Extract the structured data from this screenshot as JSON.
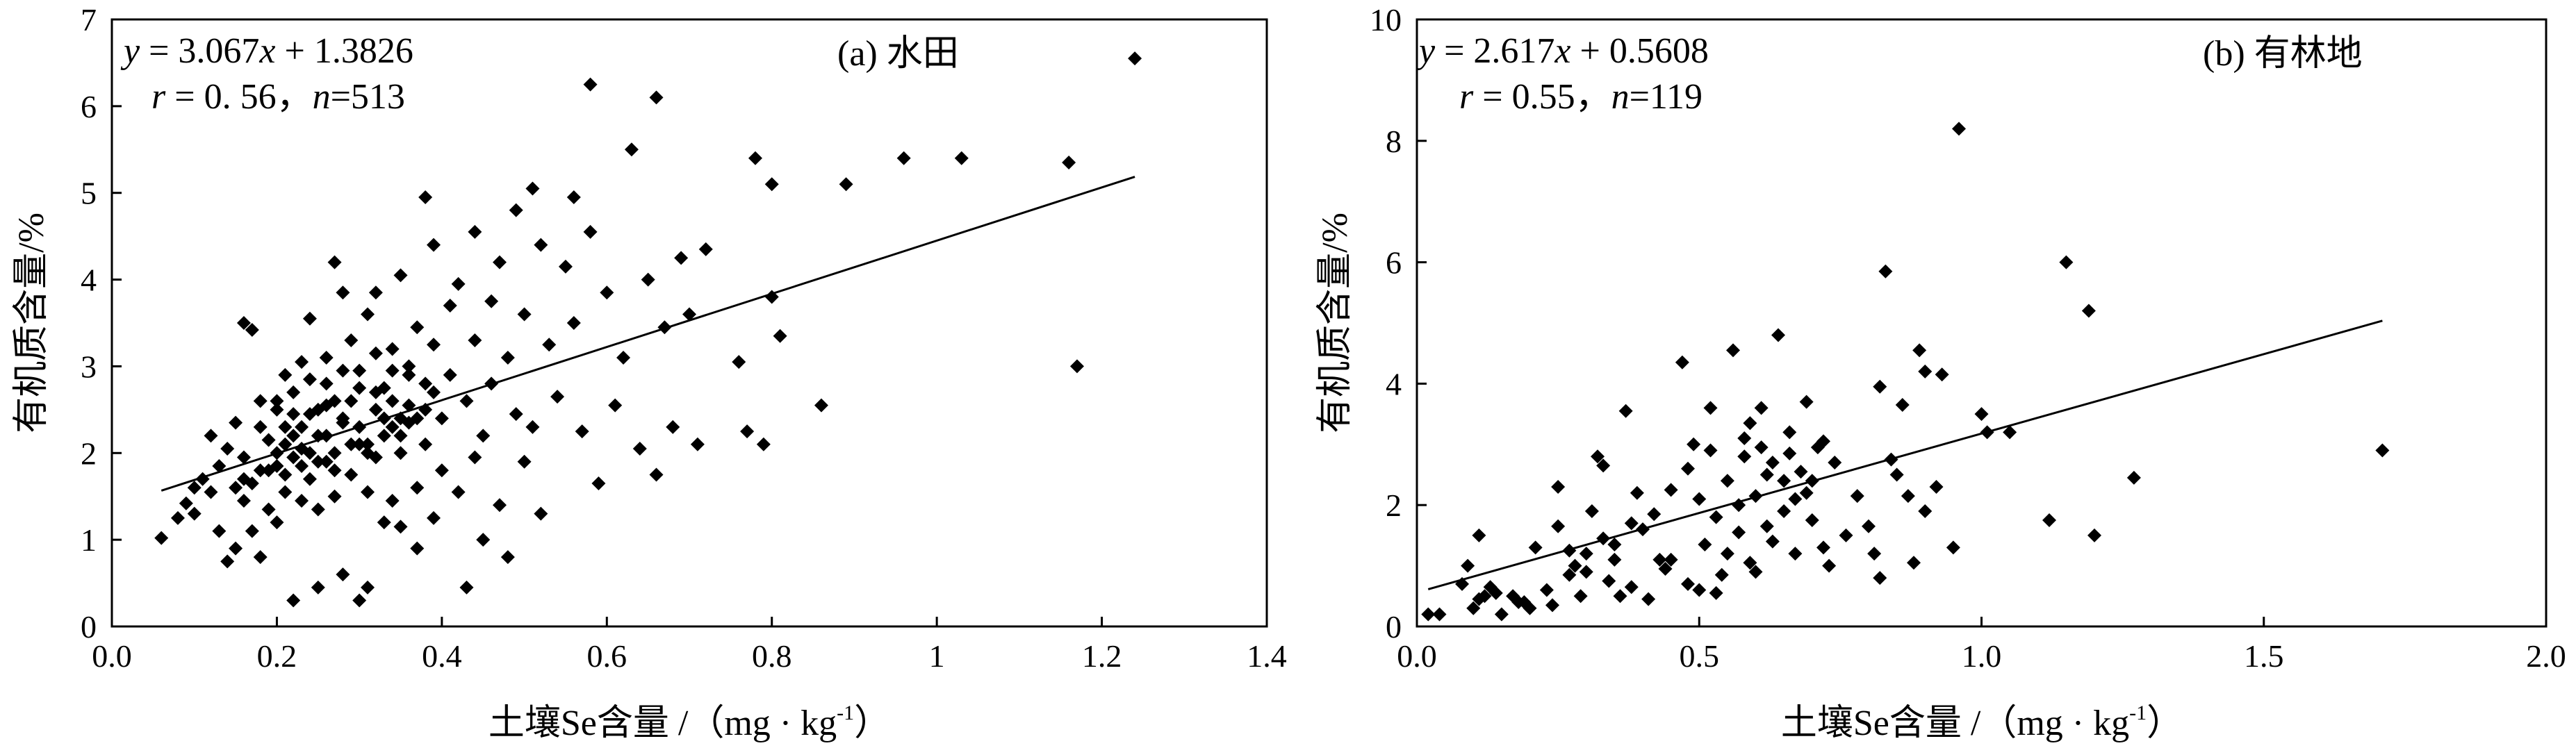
{
  "chart_data": [
    {
      "type": "scatter",
      "panel_label": "(a) 水田",
      "xlabel": "土壤Se含量 /（mg · kg",
      "xlabel_sup": "-1",
      "xlabel_tail": "）",
      "ylabel": "有机质含量/%",
      "xlim": [
        0,
        1.4
      ],
      "ylim": [
        0,
        7
      ],
      "x_ticks": [
        0,
        0.2,
        0.4,
        0.6,
        0.8,
        1,
        1.2,
        1.4
      ],
      "x_tick_labels": [
        "0.0",
        "0.2",
        "0.4",
        "0.6",
        "0.8",
        "1",
        "1.2",
        "1.4"
      ],
      "y_ticks": [
        0,
        1,
        2,
        3,
        4,
        5,
        6,
        7
      ],
      "y_tick_labels": [
        "0",
        "1",
        "2",
        "3",
        "4",
        "5",
        "6",
        "7"
      ],
      "grid": false,
      "legend": "none",
      "equation": {
        "y_var": "y",
        "eq": " = 3.067",
        "x_var": "x",
        "tail": " + 1.3826"
      },
      "stats": {
        "r_var": "r",
        "r_text": " = 0. 56，",
        "n_var": "n",
        "n_text": "=513"
      },
      "fit": {
        "slope": 3.067,
        "intercept": 1.3826,
        "x_range": [
          0.06,
          1.24
        ]
      },
      "points": [
        [
          0.06,
          1.02
        ],
        [
          0.08,
          1.25
        ],
        [
          0.09,
          1.42
        ],
        [
          0.1,
          1.6
        ],
        [
          0.1,
          1.3
        ],
        [
          0.11,
          1.7
        ],
        [
          0.12,
          2.2
        ],
        [
          0.12,
          1.55
        ],
        [
          0.13,
          1.85
        ],
        [
          0.13,
          1.1
        ],
        [
          0.14,
          2.05
        ],
        [
          0.14,
          0.75
        ],
        [
          0.15,
          1.6
        ],
        [
          0.15,
          0.9
        ],
        [
          0.15,
          2.35
        ],
        [
          0.16,
          3.5
        ],
        [
          0.16,
          1.45
        ],
        [
          0.16,
          1.95
        ],
        [
          0.17,
          3.42
        ],
        [
          0.17,
          1.65
        ],
        [
          0.17,
          1.1
        ],
        [
          0.18,
          0.8
        ],
        [
          0.18,
          2.6
        ],
        [
          0.18,
          1.8
        ],
        [
          0.19,
          1.35
        ],
        [
          0.19,
          2.15
        ],
        [
          0.2,
          2.5
        ],
        [
          0.2,
          1.85
        ],
        [
          0.2,
          1.2
        ],
        [
          0.21,
          2.9
        ],
        [
          0.21,
          1.55
        ],
        [
          0.21,
          2.3
        ],
        [
          0.22,
          0.3
        ],
        [
          0.22,
          1.95
        ],
        [
          0.22,
          2.7
        ],
        [
          0.23,
          3.05
        ],
        [
          0.23,
          1.45
        ],
        [
          0.23,
          2.05
        ],
        [
          0.24,
          3.55
        ],
        [
          0.24,
          1.7
        ],
        [
          0.24,
          2.45
        ],
        [
          0.25,
          0.45
        ],
        [
          0.25,
          1.35
        ],
        [
          0.25,
          2.2
        ],
        [
          0.26,
          3.1
        ],
        [
          0.26,
          2.8
        ],
        [
          0.26,
          1.9
        ],
        [
          0.27,
          4.2
        ],
        [
          0.27,
          1.5
        ],
        [
          0.27,
          2.6
        ],
        [
          0.28,
          0.6
        ],
        [
          0.28,
          3.85
        ],
        [
          0.28,
          2.35
        ],
        [
          0.29,
          1.75
        ],
        [
          0.29,
          3.3
        ],
        [
          0.3,
          0.3
        ],
        [
          0.3,
          2.1
        ],
        [
          0.3,
          2.95
        ],
        [
          0.31,
          0.45
        ],
        [
          0.31,
          1.55
        ],
        [
          0.31,
          3.6
        ],
        [
          0.32,
          2.5
        ],
        [
          0.32,
          1.95
        ],
        [
          0.32,
          3.85
        ],
        [
          0.33,
          1.2
        ],
        [
          0.33,
          2.75
        ],
        [
          0.34,
          3.2
        ],
        [
          0.34,
          1.45
        ],
        [
          0.34,
          2.3
        ],
        [
          0.35,
          4.05
        ],
        [
          0.35,
          2.0
        ],
        [
          0.35,
          1.15
        ],
        [
          0.36,
          3.0
        ],
        [
          0.36,
          2.55
        ],
        [
          0.37,
          1.6
        ],
        [
          0.37,
          3.45
        ],
        [
          0.37,
          0.9
        ],
        [
          0.38,
          4.95
        ],
        [
          0.38,
          2.1
        ],
        [
          0.38,
          2.8
        ],
        [
          0.39,
          4.4
        ],
        [
          0.39,
          1.25
        ],
        [
          0.39,
          3.25
        ],
        [
          0.4,
          2.4
        ],
        [
          0.4,
          1.8
        ],
        [
          0.41,
          3.7
        ],
        [
          0.41,
          2.9
        ],
        [
          0.42,
          1.55
        ],
        [
          0.42,
          3.95
        ],
        [
          0.43,
          2.6
        ],
        [
          0.43,
          0.45
        ],
        [
          0.44,
          4.55
        ],
        [
          0.44,
          1.95
        ],
        [
          0.44,
          3.3
        ],
        [
          0.45,
          2.2
        ],
        [
          0.45,
          1.0
        ],
        [
          0.46,
          3.75
        ],
        [
          0.46,
          2.8
        ],
        [
          0.47,
          4.2
        ],
        [
          0.47,
          1.4
        ],
        [
          0.48,
          3.1
        ],
        [
          0.48,
          0.8
        ],
        [
          0.49,
          4.8
        ],
        [
          0.49,
          2.45
        ],
        [
          0.5,
          1.9
        ],
        [
          0.5,
          3.6
        ],
        [
          0.51,
          5.05
        ],
        [
          0.51,
          2.3
        ],
        [
          0.52,
          4.4
        ],
        [
          0.52,
          1.3
        ],
        [
          0.53,
          3.25
        ],
        [
          0.54,
          2.65
        ],
        [
          0.55,
          4.15
        ],
        [
          0.56,
          4.95
        ],
        [
          0.56,
          3.5
        ],
        [
          0.57,
          2.25
        ],
        [
          0.58,
          6.25
        ],
        [
          0.58,
          4.55
        ],
        [
          0.59,
          1.65
        ],
        [
          0.6,
          3.85
        ],
        [
          0.61,
          2.55
        ],
        [
          0.62,
          3.1
        ],
        [
          0.63,
          5.5
        ],
        [
          0.64,
          2.05
        ],
        [
          0.65,
          4.0
        ],
        [
          0.66,
          6.1
        ],
        [
          0.66,
          1.75
        ],
        [
          0.67,
          3.45
        ],
        [
          0.68,
          2.3
        ],
        [
          0.69,
          4.25
        ],
        [
          0.7,
          3.6
        ],
        [
          0.71,
          2.1
        ],
        [
          0.72,
          4.35
        ],
        [
          0.76,
          3.05
        ],
        [
          0.77,
          2.25
        ],
        [
          0.78,
          5.4
        ],
        [
          0.79,
          2.1
        ],
        [
          0.8,
          5.1
        ],
        [
          0.8,
          3.8
        ],
        [
          0.81,
          3.35
        ],
        [
          0.86,
          2.55
        ],
        [
          0.89,
          5.1
        ],
        [
          0.96,
          5.4
        ],
        [
          1.03,
          5.4
        ],
        [
          1.16,
          5.35
        ],
        [
          1.17,
          3.0
        ],
        [
          1.24,
          6.55
        ],
        [
          0.2,
          2.0
        ],
        [
          0.21,
          2.1
        ],
        [
          0.22,
          2.2
        ],
        [
          0.23,
          2.3
        ],
        [
          0.24,
          2.0
        ],
        [
          0.25,
          2.5
        ],
        [
          0.26,
          2.2
        ],
        [
          0.27,
          2.0
        ],
        [
          0.28,
          2.4
        ],
        [
          0.29,
          2.6
        ],
        [
          0.3,
          2.3
        ],
        [
          0.31,
          2.1
        ],
        [
          0.32,
          2.7
        ],
        [
          0.33,
          2.4
        ],
        [
          0.34,
          2.6
        ],
        [
          0.35,
          2.2
        ],
        [
          0.36,
          2.9
        ],
        [
          0.37,
          2.4
        ],
        [
          0.38,
          2.5
        ],
        [
          0.39,
          2.7
        ],
        [
          0.19,
          1.8
        ],
        [
          0.21,
          1.75
        ],
        [
          0.23,
          1.85
        ],
        [
          0.25,
          1.9
        ],
        [
          0.27,
          1.8
        ],
        [
          0.29,
          2.1
        ],
        [
          0.31,
          2.0
        ],
        [
          0.33,
          2.2
        ],
        [
          0.35,
          2.4
        ],
        [
          0.2,
          2.6
        ],
        [
          0.22,
          2.45
        ],
        [
          0.24,
          2.85
        ],
        [
          0.26,
          2.55
        ],
        [
          0.28,
          2.95
        ],
        [
          0.3,
          2.75
        ],
        [
          0.32,
          3.15
        ],
        [
          0.34,
          2.95
        ],
        [
          0.36,
          2.35
        ],
        [
          0.18,
          2.3
        ],
        [
          0.16,
          1.7
        ]
      ]
    },
    {
      "type": "scatter",
      "panel_label": "(b) 有林地",
      "xlabel": "土壤Se含量 /（mg · kg",
      "xlabel_sup": "-1",
      "xlabel_tail": "）",
      "ylabel": "有机质含量/%",
      "xlim": [
        0,
        2.0
      ],
      "ylim": [
        0,
        10
      ],
      "x_ticks": [
        0,
        0.5,
        1.0,
        1.5,
        2.0
      ],
      "x_tick_labels": [
        "0.0",
        "0.5",
        "1.0",
        "1.5",
        "2.0"
      ],
      "y_ticks": [
        0,
        2,
        4,
        6,
        8,
        10
      ],
      "y_tick_labels": [
        "0",
        "2",
        "4",
        "6",
        "8",
        "10"
      ],
      "grid": false,
      "legend": "none",
      "equation": {
        "y_var": "y",
        "eq": " = 2.617",
        "x_var": "x",
        "tail": " + 0.5608"
      },
      "stats": {
        "r_var": "r",
        "r_text": " = 0.55，",
        "n_var": "n",
        "n_text": "=119"
      },
      "fit": {
        "slope": 2.617,
        "intercept": 0.5608,
        "x_range": [
          0.02,
          1.71
        ]
      },
      "points": [
        [
          0.02,
          0.2
        ],
        [
          0.04,
          0.2
        ],
        [
          0.08,
          0.7
        ],
        [
          0.09,
          1.0
        ],
        [
          0.1,
          0.3
        ],
        [
          0.11,
          0.45
        ],
        [
          0.11,
          1.5
        ],
        [
          0.12,
          0.5
        ],
        [
          0.13,
          0.65
        ],
        [
          0.15,
          0.2
        ],
        [
          0.17,
          0.5
        ],
        [
          0.19,
          0.4
        ],
        [
          0.2,
          0.3
        ],
        [
          0.21,
          1.3
        ],
        [
          0.23,
          0.6
        ],
        [
          0.25,
          1.65
        ],
        [
          0.25,
          2.3
        ],
        [
          0.27,
          0.85
        ],
        [
          0.28,
          1.0
        ],
        [
          0.29,
          0.5
        ],
        [
          0.3,
          1.2
        ],
        [
          0.31,
          1.9
        ],
        [
          0.32,
          2.8
        ],
        [
          0.33,
          2.65
        ],
        [
          0.34,
          0.75
        ],
        [
          0.35,
          1.35
        ],
        [
          0.36,
          0.5
        ],
        [
          0.37,
          3.55
        ],
        [
          0.38,
          1.7
        ],
        [
          0.39,
          2.2
        ],
        [
          0.41,
          0.45
        ],
        [
          0.43,
          1.1
        ],
        [
          0.45,
          2.25
        ],
        [
          0.47,
          4.35
        ],
        [
          0.48,
          0.7
        ],
        [
          0.49,
          3.0
        ],
        [
          0.5,
          2.1
        ],
        [
          0.51,
          1.35
        ],
        [
          0.52,
          3.6
        ],
        [
          0.53,
          1.8
        ],
        [
          0.54,
          0.85
        ],
        [
          0.55,
          2.4
        ],
        [
          0.56,
          4.55
        ],
        [
          0.57,
          1.55
        ],
        [
          0.58,
          3.1
        ],
        [
          0.59,
          1.05
        ],
        [
          0.6,
          2.15
        ],
        [
          0.61,
          3.6
        ],
        [
          0.62,
          1.65
        ],
        [
          0.63,
          2.7
        ],
        [
          0.64,
          4.8
        ],
        [
          0.65,
          2.4
        ],
        [
          0.66,
          3.2
        ],
        [
          0.67,
          1.2
        ],
        [
          0.68,
          2.55
        ],
        [
          0.69,
          3.7
        ],
        [
          0.7,
          1.75
        ],
        [
          0.71,
          2.95
        ],
        [
          0.72,
          3.05
        ],
        [
          0.73,
          1.0
        ],
        [
          0.78,
          2.15
        ],
        [
          0.8,
          1.65
        ],
        [
          0.82,
          0.8
        ],
        [
          0.82,
          3.95
        ],
        [
          0.83,
          5.85
        ],
        [
          0.84,
          2.75
        ],
        [
          0.86,
          3.65
        ],
        [
          0.87,
          2.15
        ],
        [
          0.88,
          1.05
        ],
        [
          0.89,
          4.55
        ],
        [
          0.9,
          4.2
        ],
        [
          0.92,
          2.3
        ],
        [
          0.93,
          4.15
        ],
        [
          0.95,
          1.3
        ],
        [
          0.96,
          8.2
        ],
        [
          1.0,
          3.5
        ],
        [
          1.01,
          3.2
        ],
        [
          1.05,
          3.2
        ],
        [
          1.12,
          1.75
        ],
        [
          1.15,
          6.0
        ],
        [
          1.19,
          5.2
        ],
        [
          1.2,
          1.5
        ],
        [
          1.27,
          2.45
        ],
        [
          1.71,
          2.9
        ],
        [
          0.35,
          1.1
        ],
        [
          0.4,
          1.6
        ],
        [
          0.45,
          1.1
        ],
        [
          0.5,
          0.6
        ],
        [
          0.52,
          2.9
        ],
        [
          0.55,
          1.2
        ],
        [
          0.57,
          2.0
        ],
        [
          0.6,
          0.9
        ],
        [
          0.62,
          2.5
        ],
        [
          0.65,
          1.9
        ],
        [
          0.67,
          2.1
        ],
        [
          0.7,
          2.4
        ],
        [
          0.72,
          1.3
        ],
        [
          0.74,
          2.7
        ],
        [
          0.3,
          0.9
        ],
        [
          0.33,
          1.45
        ],
        [
          0.42,
          1.85
        ],
        [
          0.48,
          2.6
        ],
        [
          0.58,
          2.8
        ],
        [
          0.63,
          1.4
        ],
        [
          0.66,
          2.85
        ],
        [
          0.69,
          2.2
        ],
        [
          0.76,
          1.5
        ],
        [
          0.81,
          1.2
        ],
        [
          0.85,
          2.5
        ],
        [
          0.9,
          1.9
        ],
        [
          0.53,
          0.55
        ],
        [
          0.44,
          0.95
        ],
        [
          0.38,
          0.65
        ],
        [
          0.27,
          1.25
        ],
        [
          0.24,
          0.35
        ],
        [
          0.18,
          0.4
        ],
        [
          0.14,
          0.55
        ],
        [
          0.59,
          3.35
        ],
        [
          0.61,
          2.95
        ]
      ]
    }
  ]
}
